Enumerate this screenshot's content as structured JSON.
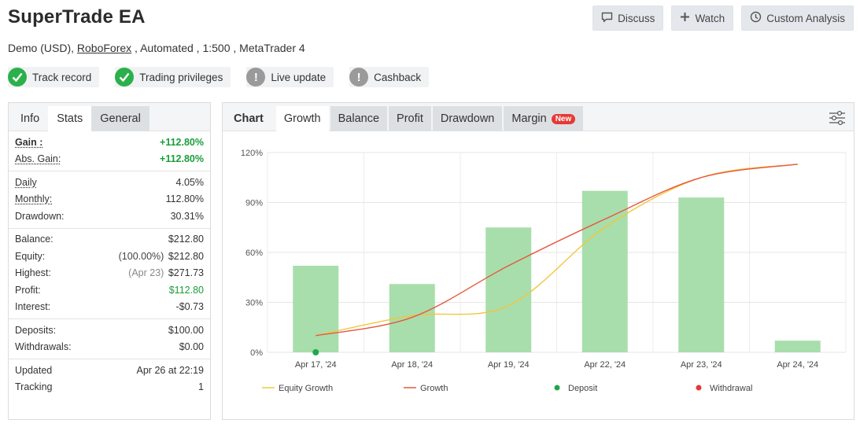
{
  "header": {
    "title": "SuperTrade EA",
    "sub_pre": "Demo (USD), ",
    "broker": "RoboForex",
    "sub_post": " , Automated , 1:500 , MetaTrader 4"
  },
  "actions": [
    {
      "label": "Discuss",
      "icon": "chat-icon"
    },
    {
      "label": "Watch",
      "icon": "plus-icon"
    },
    {
      "label": "Custom Analysis",
      "icon": "clock-icon"
    }
  ],
  "badges": [
    {
      "label": "Track record",
      "status": "ok"
    },
    {
      "label": "Trading privileges",
      "status": "ok"
    },
    {
      "label": "Live update",
      "status": "warn"
    },
    {
      "label": "Cashback",
      "status": "warn"
    }
  ],
  "stats": {
    "tabs": [
      "Info",
      "Stats",
      "General"
    ],
    "gain_label": "Gain :",
    "gain_value": "+112.80%",
    "abs_gain_label": "Abs. Gain:",
    "abs_gain_value": "+112.80%",
    "daily_label": "Daily",
    "daily_value": "4.05%",
    "monthly_label": "Monthly:",
    "monthly_value": "112.80%",
    "drawdown_label": "Drawdown:",
    "drawdown_value": "30.31%",
    "balance_label": "Balance:",
    "balance_value": "$212.80",
    "equity_label": "Equity:",
    "equity_pre": "(100.00%)",
    "equity_value": "$212.80",
    "highest_label": "Highest:",
    "highest_pre": "(Apr 23)",
    "highest_value": "$271.73",
    "profit_label": "Profit:",
    "profit_value": "$112.80",
    "interest_label": "Interest:",
    "interest_value": "-$0.73",
    "deposits_label": "Deposits:",
    "deposits_value": "$100.00",
    "withdrawals_label": "Withdrawals:",
    "withdrawals_value": "$0.00",
    "updated_label": "Updated",
    "updated_value": "Apr 26 at 22:19",
    "tracking_label": "Tracking",
    "tracking_value": "1"
  },
  "chart_tabs": {
    "chart": "Chart",
    "growth": "Growth",
    "balance": "Balance",
    "profit": "Profit",
    "drawdown": "Drawdown",
    "margin": "Margin",
    "new_tag": "New"
  },
  "chart_data": {
    "type": "bar",
    "categories": [
      "Apr 17, '24",
      "Apr 18, '24",
      "Apr 19, '24",
      "Apr 22, '24",
      "Apr 23, '24",
      "Apr 24, '24"
    ],
    "ylim": [
      0,
      120
    ],
    "yticks": [
      "0%",
      "30%",
      "60%",
      "90%",
      "120%"
    ],
    "bars": [
      52,
      41,
      75,
      97,
      93,
      7
    ],
    "series": [
      {
        "name": "Equity Growth",
        "color": "#f2c53d",
        "values": [
          10,
          22,
          28,
          75,
          105,
          113
        ]
      },
      {
        "name": "Growth",
        "color": "#e8573f",
        "values": [
          10,
          21,
          52,
          80,
          105,
          113
        ]
      }
    ],
    "markers": [
      {
        "name": "Deposit",
        "color": "#1fa84a",
        "x_index": 0,
        "value": 0
      }
    ],
    "legend": [
      {
        "name": "Equity Growth",
        "kind": "line",
        "color": "#f2c53d"
      },
      {
        "name": "Growth",
        "kind": "line",
        "color": "#e8573f"
      },
      {
        "name": "Deposit",
        "kind": "dot",
        "color": "#1fa84a"
      },
      {
        "name": "Withdrawal",
        "kind": "dot",
        "color": "#e53935"
      }
    ],
    "bar_color": "#a8deab"
  }
}
